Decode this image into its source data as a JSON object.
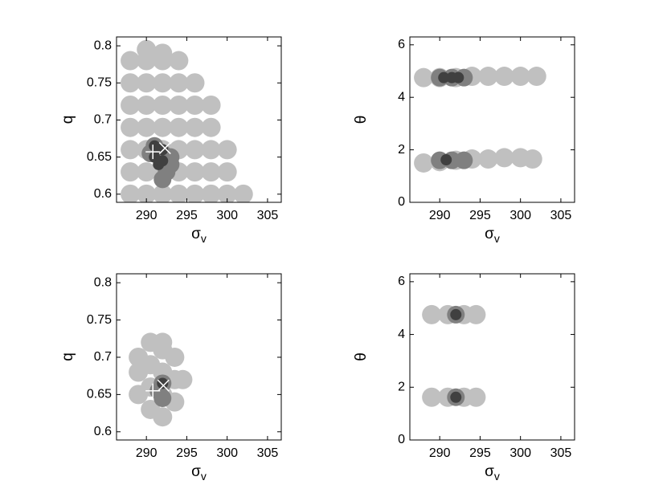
{
  "chart_data": [
    {
      "type": "scatter",
      "xlabel": {
        "text": "σ",
        "subscript": "v"
      },
      "ylabel": "q",
      "xlim": [
        286.3,
        306.7
      ],
      "ylim": [
        0.589,
        0.812
      ],
      "xticks": [
        290,
        295,
        300,
        305
      ],
      "yticks": [
        0.6,
        0.65,
        0.7,
        0.75,
        0.8
      ],
      "series": [
        {
          "color": "#c0c0c0",
          "x": [
            288,
            288,
            288,
            288,
            288,
            288,
            288,
            290,
            290,
            290,
            290,
            290,
            290,
            290,
            290,
            292,
            292,
            292,
            292,
            292,
            292,
            292,
            292,
            294,
            294,
            294,
            294,
            294,
            294,
            294,
            296,
            296,
            296,
            296,
            296,
            296,
            298,
            298,
            298,
            298,
            298,
            300,
            300,
            300,
            302
          ],
          "values": [
            0.6,
            0.63,
            0.66,
            0.69,
            0.72,
            0.75,
            0.78,
            0.6,
            0.63,
            0.66,
            0.69,
            0.72,
            0.75,
            0.78,
            0.795,
            0.6,
            0.63,
            0.66,
            0.69,
            0.72,
            0.75,
            0.78,
            0.79,
            0.6,
            0.63,
            0.66,
            0.69,
            0.72,
            0.75,
            0.78,
            0.6,
            0.63,
            0.66,
            0.69,
            0.72,
            0.75,
            0.6,
            0.63,
            0.66,
            0.69,
            0.72,
            0.6,
            0.63,
            0.66,
            0.6
          ]
        },
        {
          "color": "#808080",
          "x": [
            290.5,
            291,
            292,
            293,
            293,
            292.5,
            292
          ],
          "values": [
            0.655,
            0.665,
            0.655,
            0.65,
            0.64,
            0.63,
            0.62
          ]
        },
        {
          "color": "#404040",
          "x": [
            291,
            291,
            291.5,
            292,
            292
          ],
          "values": [
            0.665,
            0.65,
            0.64,
            0.66,
            0.645
          ]
        },
        {
          "color": "#ffffff",
          "marker": "+",
          "x": [
            290.8
          ],
          "values": [
            0.657
          ]
        },
        {
          "color": "#ffffff",
          "marker": "x",
          "x": [
            292.3
          ],
          "values": [
            0.662
          ]
        }
      ]
    },
    {
      "type": "scatter",
      "xlabel": {
        "text": "σ",
        "subscript": "v"
      },
      "ylabel": "θ",
      "xlim": [
        286.3,
        306.7
      ],
      "ylim": [
        0,
        6.3
      ],
      "xticks": [
        290,
        295,
        300,
        305
      ],
      "yticks": [
        0,
        2,
        4,
        6
      ],
      "series": [
        {
          "color": "#c0c0c0",
          "x": [
            288,
            290,
            292,
            294,
            296,
            298,
            300,
            302,
            288,
            290,
            292,
            294,
            296,
            298,
            300,
            301.5
          ],
          "values": [
            4.75,
            4.75,
            4.75,
            4.8,
            4.8,
            4.8,
            4.8,
            4.8,
            1.5,
            1.55,
            1.6,
            1.65,
            1.65,
            1.7,
            1.7,
            1.65
          ]
        },
        {
          "color": "#808080",
          "x": [
            290,
            291.5,
            293,
            290,
            291.5,
            293
          ],
          "values": [
            4.75,
            4.75,
            4.75,
            1.6,
            1.6,
            1.6
          ]
        },
        {
          "color": "#404040",
          "x": [
            290.5,
            291.5,
            292.3,
            290.8
          ],
          "values": [
            4.75,
            4.75,
            4.75,
            1.62
          ]
        }
      ]
    },
    {
      "type": "scatter",
      "xlabel": {
        "text": "σ",
        "subscript": "v"
      },
      "ylabel": "q",
      "xlim": [
        286.3,
        306.7
      ],
      "ylim": [
        0.589,
        0.812
      ],
      "xticks": [
        290,
        295,
        300,
        305
      ],
      "yticks": [
        0.6,
        0.65,
        0.7,
        0.75,
        0.8
      ],
      "series": [
        {
          "color": "#c0c0c0",
          "x": [
            289,
            289,
            289,
            290.5,
            290.5,
            290.5,
            290.5,
            292,
            292,
            292,
            292,
            292,
            293.5,
            293.5,
            293.5,
            294.5
          ],
          "values": [
            0.65,
            0.68,
            0.7,
            0.63,
            0.66,
            0.69,
            0.72,
            0.62,
            0.65,
            0.68,
            0.71,
            0.72,
            0.64,
            0.67,
            0.7,
            0.67
          ]
        },
        {
          "color": "#808080",
          "x": [
            292,
            292,
            291.5
          ],
          "values": [
            0.665,
            0.645,
            0.655
          ]
        },
        {
          "color": "#404040",
          "x": [
            292
          ],
          "values": [
            0.665
          ]
        },
        {
          "color": "#ffffff",
          "marker": "+",
          "x": [
            290.8
          ],
          "values": [
            0.655
          ]
        },
        {
          "color": "#ffffff",
          "marker": "x",
          "x": [
            292.1
          ],
          "values": [
            0.662
          ]
        }
      ]
    },
    {
      "type": "scatter",
      "xlabel": {
        "text": "σ",
        "subscript": "v"
      },
      "ylabel": "θ",
      "xlim": [
        286.3,
        306.7
      ],
      "ylim": [
        0,
        6.3
      ],
      "xticks": [
        290,
        295,
        300,
        305
      ],
      "yticks": [
        0,
        2,
        4,
        6
      ],
      "series": [
        {
          "color": "#c0c0c0",
          "x": [
            289,
            291,
            293,
            294.5,
            289,
            291,
            293,
            294.5
          ],
          "values": [
            4.75,
            4.75,
            4.75,
            4.75,
            1.62,
            1.62,
            1.62,
            1.62
          ]
        },
        {
          "color": "#808080",
          "x": [
            292,
            292
          ],
          "values": [
            4.75,
            1.62
          ]
        },
        {
          "color": "#404040",
          "x": [
            292,
            292
          ],
          "values": [
            4.75,
            1.62
          ]
        }
      ]
    }
  ]
}
